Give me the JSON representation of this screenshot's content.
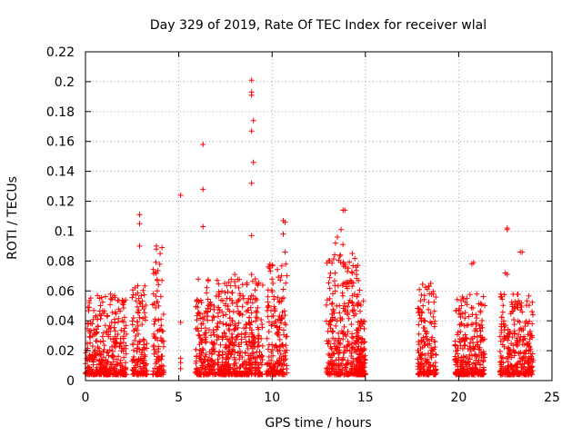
{
  "chart_data": {
    "type": "scatter",
    "title": "Day 329 of 2019, Rate Of TEC Index for receiver wlal",
    "xlabel": "GPS time / hours",
    "ylabel": "ROTI / TECUs",
    "xlim": [
      0,
      25
    ],
    "ylim": [
      0,
      0.22
    ],
    "xticks": [
      0,
      5,
      10,
      15,
      20,
      25
    ],
    "yticks": [
      0,
      0.02,
      0.04,
      0.06,
      0.08,
      0.1,
      0.12,
      0.14,
      0.16,
      0.18,
      0.2,
      0.22
    ],
    "xtick_labels": [
      "0",
      "5",
      "10",
      "15",
      "20",
      "25"
    ],
    "ytick_labels": [
      "0",
      "0.02",
      "0.04",
      "0.06",
      "0.08",
      "0.1",
      "0.12",
      "0.14",
      "0.16",
      "0.18",
      "0.2",
      "0.22"
    ],
    "grid": true,
    "marker": "+",
    "color": "#ff0000",
    "series": [
      {
        "name": "ROTI",
        "points": [
          [
            5.1,
            0.124
          ],
          [
            6.3,
            0.158
          ],
          [
            6.3,
            0.128
          ],
          [
            6.3,
            0.103
          ],
          [
            8.9,
            0.201
          ],
          [
            8.9,
            0.193
          ],
          [
            8.9,
            0.191
          ],
          [
            9.0,
            0.174
          ],
          [
            8.9,
            0.167
          ],
          [
            9.0,
            0.146
          ],
          [
            8.9,
            0.132
          ],
          [
            8.9,
            0.097
          ],
          [
            8.9,
            0.071
          ],
          [
            2.9,
            0.111
          ],
          [
            2.9,
            0.105
          ],
          [
            2.9,
            0.09
          ],
          [
            3.8,
            0.09
          ],
          [
            3.8,
            0.088
          ],
          [
            4.0,
            0.085
          ],
          [
            4.1,
            0.089
          ],
          [
            10.6,
            0.107
          ],
          [
            10.7,
            0.106
          ],
          [
            10.6,
            0.098
          ],
          [
            10.7,
            0.086
          ],
          [
            13.5,
            0.096
          ],
          [
            13.8,
            0.114
          ],
          [
            13.9,
            0.114
          ],
          [
            13.7,
            0.101
          ],
          [
            13.8,
            0.091
          ],
          [
            13.4,
            0.092
          ],
          [
            22.6,
            0.102
          ],
          [
            22.6,
            0.101
          ],
          [
            23.3,
            0.086
          ],
          [
            23.4,
            0.086
          ],
          [
            20.7,
            0.078
          ],
          [
            20.8,
            0.079
          ],
          [
            22.5,
            0.072
          ],
          [
            22.6,
            0.071
          ],
          [
            18.5,
            0.065
          ],
          [
            18.4,
            0.063
          ],
          [
            5.1,
            0.039
          ],
          [
            5.1,
            0.015
          ],
          [
            5.1,
            0.012
          ],
          [
            5.1,
            0.008
          ],
          [
            14.3,
            0.085
          ],
          [
            14.5,
            0.076
          ],
          [
            9.1,
            0.068
          ],
          [
            8.0,
            0.071
          ]
        ],
        "dense_clusters": [
          {
            "x_range": [
              0.0,
              2.2
            ],
            "y_base": 0.004,
            "y_peak": 0.058
          },
          {
            "x_range": [
              2.5,
              3.3
            ],
            "y_base": 0.004,
            "y_peak": 0.065
          },
          {
            "x_range": [
              3.6,
              4.2
            ],
            "y_base": 0.004,
            "y_peak": 0.08
          },
          {
            "x_range": [
              5.9,
              7.7
            ],
            "y_base": 0.004,
            "y_peak": 0.068
          },
          {
            "x_range": [
              7.6,
              9.5
            ],
            "y_base": 0.004,
            "y_peak": 0.068
          },
          {
            "x_range": [
              9.7,
              10.8
            ],
            "y_base": 0.004,
            "y_peak": 0.078
          },
          {
            "x_range": [
              12.9,
              14.9
            ],
            "y_base": 0.004,
            "y_peak": 0.085
          },
          {
            "x_range": [
              14.5,
              15.0
            ],
            "y_base": 0.004,
            "y_peak": 0.04
          },
          {
            "x_range": [
              17.8,
              18.8
            ],
            "y_base": 0.004,
            "y_peak": 0.065
          },
          {
            "x_range": [
              19.8,
              21.4
            ],
            "y_base": 0.004,
            "y_peak": 0.058
          },
          {
            "x_range": [
              22.2,
              24.0
            ],
            "y_base": 0.004,
            "y_peak": 0.058
          }
        ]
      }
    ]
  }
}
